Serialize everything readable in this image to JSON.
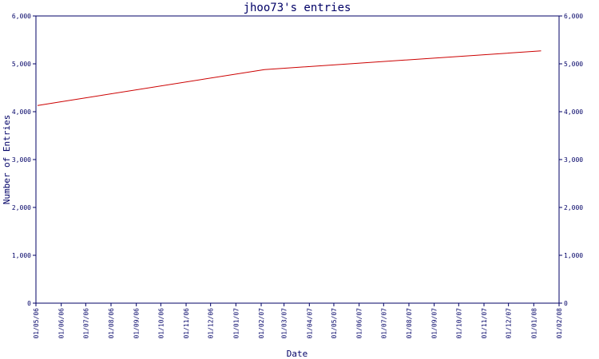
{
  "colors": {
    "axis": "#000066",
    "line": "#cc0000",
    "background": "#ffffff"
  },
  "chart_data": {
    "type": "line",
    "title": "jhoo73's entries",
    "xlabel": "Date",
    "ylabel": "Number of Entries",
    "ylim": [
      0,
      6000
    ],
    "yticks": [
      0,
      1000,
      2000,
      3000,
      4000,
      5000,
      6000
    ],
    "ytick_labels": [
      "0",
      "1,000",
      "2,000",
      "3,000",
      "4,000",
      "5,000",
      "6,000"
    ],
    "xlim": [
      "2006-05-01",
      "2008-02-01"
    ],
    "xtick_labels": [
      "01/05/06",
      "01/06/06",
      "01/07/06",
      "01/08/06",
      "01/09/06",
      "01/10/06",
      "01/11/06",
      "01/12/06",
      "01/01/07",
      "01/02/07",
      "01/03/07",
      "01/04/07",
      "01/05/07",
      "01/06/07",
      "01/07/07",
      "01/08/07",
      "01/09/07",
      "01/10/07",
      "01/11/07",
      "01/12/07",
      "01/01/08",
      "01/02/08"
    ],
    "grid": false,
    "series": [
      {
        "x": [
          "2006-05-03",
          "2007-02-05",
          "2008-01-10"
        ],
        "y": [
          4130,
          4880,
          5270
        ]
      }
    ]
  }
}
